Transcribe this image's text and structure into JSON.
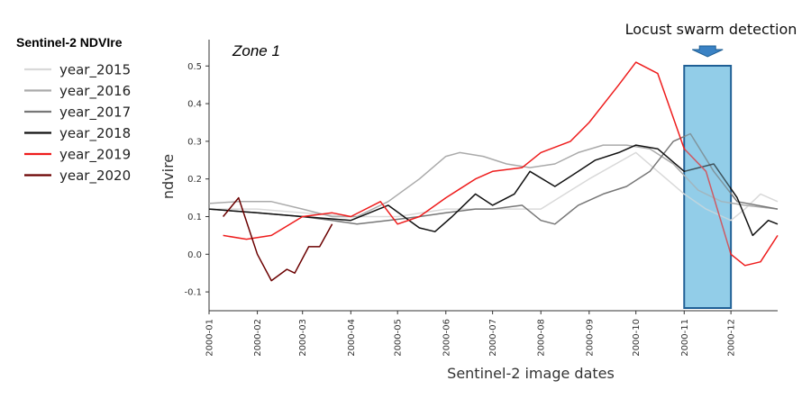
{
  "chart_data": {
    "type": "line",
    "annotation_zone": "Zone 1",
    "xlabel": "Sentinel-2 image dates",
    "ylabel": "ndvire",
    "xlim": [
      "2000-01-01",
      "2000-12-31"
    ],
    "ylim": [
      -0.15,
      0.57
    ],
    "x_ticks": [
      "2000-01",
      "2000-02",
      "2000-03",
      "2000-04",
      "2000-05",
      "2000-06",
      "2000-07",
      "2000-08",
      "2000-09",
      "2000-10",
      "2000-11",
      "2000-12"
    ],
    "y_ticks": [
      "-0.1",
      "0.0",
      "0.1",
      "0.2",
      "0.3",
      "0.4",
      "0.5"
    ],
    "legend": {
      "title": "Sentinel-2 NDVIre",
      "placement": "left"
    },
    "highlight": {
      "label": "Locust swarm detection",
      "start": "2000-11-01",
      "end": "2000-12-01",
      "fill": "#92cde9",
      "stroke": "#1f5f95",
      "arrow_color": "#3a82c4"
    },
    "grid": false,
    "series": [
      {
        "name": "year_2015",
        "color": "#d9d9d9",
        "x": [
          "2000-01-01",
          "2000-02-01",
          "2000-03-01",
          "2000-04-01",
          "2000-05-01",
          "2000-06-01",
          "2000-07-01",
          "2000-08-01",
          "2000-09-01",
          "2000-10-01",
          "2000-10-15",
          "2000-11-01",
          "2000-11-15",
          "2000-12-01",
          "2000-12-10",
          "2000-12-20",
          "2000-12-31"
        ],
        "y": [
          0.12,
          0.12,
          0.11,
          0.1,
          0.1,
          0.12,
          0.12,
          0.12,
          0.2,
          0.27,
          0.22,
          0.16,
          0.12,
          0.09,
          0.12,
          0.16,
          0.14
        ]
      },
      {
        "name": "year_2016",
        "color": "#aaaaaa",
        "x": [
          "2000-01-01",
          "2000-01-20",
          "2000-02-10",
          "2000-03-01",
          "2000-03-20",
          "2000-04-05",
          "2000-04-25",
          "2000-05-15",
          "2000-06-01",
          "2000-06-10",
          "2000-06-25",
          "2000-07-10",
          "2000-07-25",
          "2000-08-10",
          "2000-08-25",
          "2000-09-10",
          "2000-09-25",
          "2000-10-10",
          "2000-10-25",
          "2000-11-10",
          "2000-11-25",
          "2000-12-10",
          "2000-12-31"
        ],
        "y": [
          0.135,
          0.14,
          0.14,
          0.12,
          0.1,
          0.1,
          0.14,
          0.2,
          0.26,
          0.27,
          0.26,
          0.24,
          0.23,
          0.24,
          0.27,
          0.29,
          0.29,
          0.28,
          0.24,
          0.17,
          0.14,
          0.13,
          0.12
        ]
      },
      {
        "name": "year_2017",
        "color": "#777777",
        "x": [
          "2000-01-01",
          "2000-02-01",
          "2000-03-01",
          "2000-03-20",
          "2000-04-05",
          "2000-04-25",
          "2000-05-15",
          "2000-06-01",
          "2000-06-20",
          "2000-07-01",
          "2000-07-20",
          "2000-08-01",
          "2000-08-10",
          "2000-08-25",
          "2000-09-10",
          "2000-09-25",
          "2000-10-10",
          "2000-10-25",
          "2000-11-05",
          "2000-11-20",
          "2000-12-05",
          "2000-12-31"
        ],
        "y": [
          0.12,
          0.11,
          0.1,
          0.09,
          0.08,
          0.09,
          0.1,
          0.11,
          0.12,
          0.12,
          0.13,
          0.09,
          0.08,
          0.13,
          0.16,
          0.18,
          0.22,
          0.3,
          0.32,
          0.22,
          0.14,
          0.12
        ]
      },
      {
        "name": "year_2018",
        "color": "#111111",
        "x": [
          "2000-01-01",
          "2000-02-01",
          "2000-03-01",
          "2000-04-01",
          "2000-04-25",
          "2000-05-15",
          "2000-05-25",
          "2000-06-05",
          "2000-06-20",
          "2000-07-01",
          "2000-07-15",
          "2000-07-25",
          "2000-08-10",
          "2000-08-25",
          "2000-09-05",
          "2000-09-20",
          "2000-10-01",
          "2000-10-15",
          "2000-11-01",
          "2000-11-20",
          "2000-12-05",
          "2000-12-15",
          "2000-12-25",
          "2000-12-31"
        ],
        "y": [
          0.12,
          0.11,
          0.1,
          0.09,
          0.13,
          0.07,
          0.06,
          0.1,
          0.16,
          0.13,
          0.16,
          0.22,
          0.18,
          0.22,
          0.25,
          0.27,
          0.29,
          0.28,
          0.22,
          0.24,
          0.15,
          0.05,
          0.09,
          0.08
        ]
      },
      {
        "name": "year_2019",
        "color": "#ee1c1c",
        "x": [
          "2000-01-10",
          "2000-01-25",
          "2000-02-10",
          "2000-03-01",
          "2000-03-20",
          "2000-04-01",
          "2000-04-20",
          "2000-05-01",
          "2000-05-15",
          "2000-06-01",
          "2000-06-20",
          "2000-07-01",
          "2000-07-20",
          "2000-08-01",
          "2000-08-20",
          "2000-09-01",
          "2000-09-20",
          "2000-10-01",
          "2000-10-15",
          "2000-11-01",
          "2000-11-15",
          "2000-12-01",
          "2000-12-10",
          "2000-12-20",
          "2000-12-31"
        ],
        "y": [
          0.05,
          0.04,
          0.05,
          0.1,
          0.11,
          0.1,
          0.14,
          0.08,
          0.1,
          0.15,
          0.2,
          0.22,
          0.23,
          0.27,
          0.3,
          0.35,
          0.45,
          0.51,
          0.48,
          0.28,
          0.22,
          0.0,
          -0.03,
          -0.02,
          0.05
        ]
      },
      {
        "name": "year_2020",
        "color": "#6b0000",
        "x": [
          "2000-01-10",
          "2000-01-20",
          "2000-02-01",
          "2000-02-10",
          "2000-02-20",
          "2000-02-25",
          "2000-03-05",
          "2000-03-12",
          "2000-03-20"
        ],
        "y": [
          0.1,
          0.15,
          0.0,
          -0.07,
          -0.04,
          -0.05,
          0.02,
          0.02,
          0.08
        ]
      }
    ]
  }
}
